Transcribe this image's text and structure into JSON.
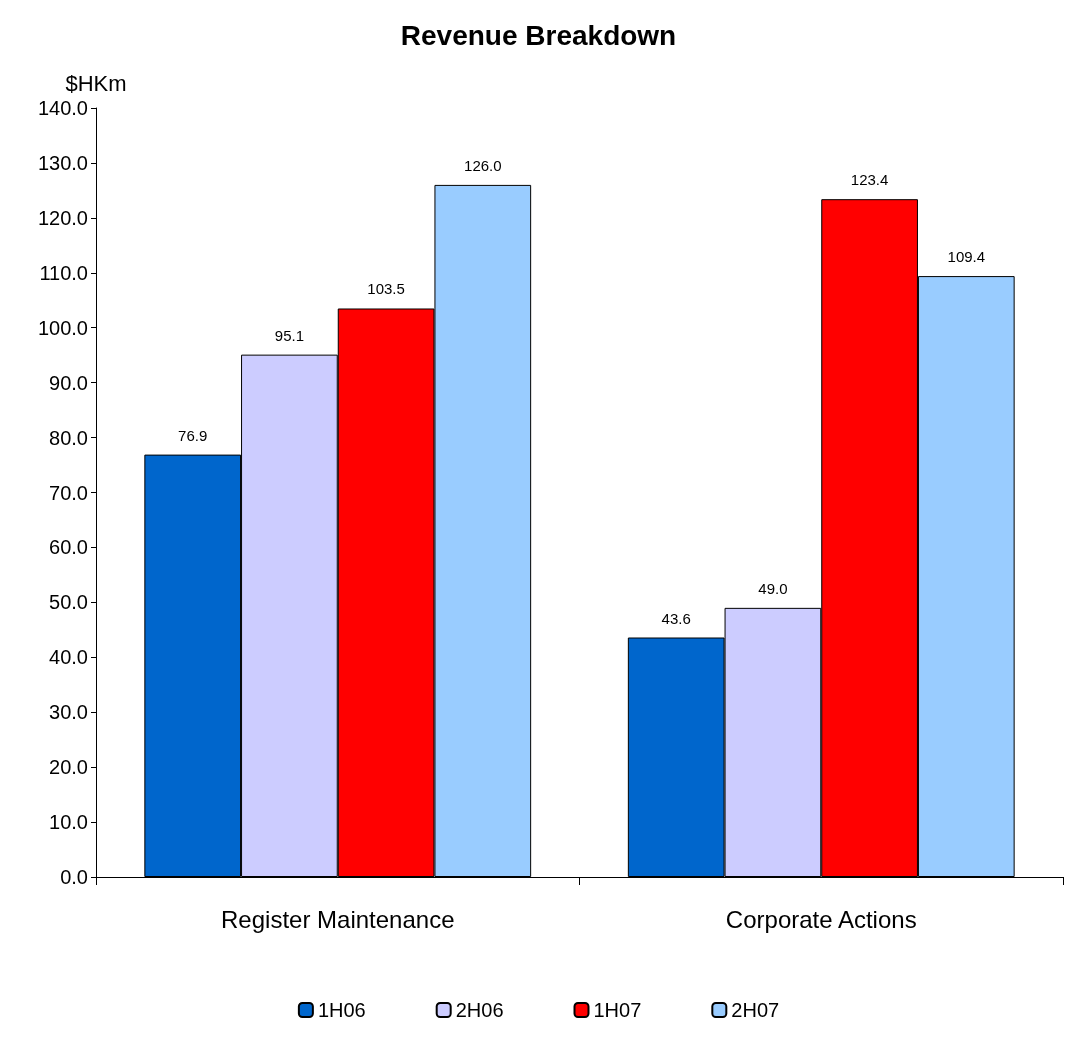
{
  "chart_data": {
    "type": "bar",
    "title": "Revenue Breakdown",
    "ylabel": "$HKm",
    "categories": [
      "Register Maintenance",
      "Corporate Actions"
    ],
    "series": [
      {
        "name": "1H06",
        "color": "#0066cc",
        "values": [
          76.9,
          43.6
        ],
        "value_labels": [
          "76.9",
          "43.6"
        ]
      },
      {
        "name": "2H06",
        "color": "#ccccff",
        "values": [
          95.1,
          49.0
        ],
        "value_labels": [
          "95.1",
          "49.0"
        ]
      },
      {
        "name": "1H07",
        "color": "#ff0000",
        "values": [
          103.5,
          123.4
        ],
        "value_labels": [
          "103.5",
          "123.4"
        ]
      },
      {
        "name": "2H07",
        "color": "#99ccff",
        "values": [
          126.0,
          109.4
        ],
        "value_labels": [
          "126.0",
          "109.4"
        ]
      }
    ],
    "ylim": [
      0,
      140
    ],
    "yticks": [
      {
        "value": 0,
        "label": "0.0"
      },
      {
        "value": 10,
        "label": "10.0"
      },
      {
        "value": 20,
        "label": "20.0"
      },
      {
        "value": 30,
        "label": "30.0"
      },
      {
        "value": 40,
        "label": "40.0"
      },
      {
        "value": 50,
        "label": "50.0"
      },
      {
        "value": 60,
        "label": "60.0"
      },
      {
        "value": 70,
        "label": "70.0"
      },
      {
        "value": 80,
        "label": "80.0"
      },
      {
        "value": 90,
        "label": "90.0"
      },
      {
        "value": 100,
        "label": "100.0"
      },
      {
        "value": 110,
        "label": "110.0"
      },
      {
        "value": 120,
        "label": "120.0"
      },
      {
        "value": 130,
        "label": "130.0"
      },
      {
        "value": 140,
        "label": "140.0"
      }
    ],
    "grid": false,
    "legend": "bottom"
  }
}
